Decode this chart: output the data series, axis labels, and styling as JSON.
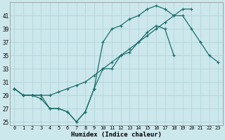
{
  "xlabel": "Humidex (Indice chaleur)",
  "ylabel": "",
  "background_color": "#cde8ed",
  "grid_color": "#b8d8de",
  "line_color": "#1a6e6a",
  "xlim": [
    -0.5,
    23.5
  ],
  "ylim": [
    24.5,
    43
  ],
  "xticks": [
    0,
    1,
    2,
    3,
    4,
    5,
    6,
    7,
    8,
    9,
    10,
    11,
    12,
    13,
    14,
    15,
    16,
    17,
    18,
    19,
    20,
    21,
    22,
    23
  ],
  "yticks": [
    25,
    27,
    29,
    31,
    33,
    35,
    37,
    39,
    41
  ],
  "line1_y": [
    30,
    29,
    29,
    28.5,
    27,
    27,
    26.5,
    25,
    26.5,
    30,
    33,
    33,
    35,
    35.5,
    37,
    38.5,
    39.5,
    39,
    35,
    null,
    null,
    null,
    null,
    null
  ],
  "line2_y": [
    30,
    29,
    29,
    29,
    29,
    29.5,
    30,
    30.5,
    31,
    32,
    33,
    34,
    35,
    36,
    37,
    38,
    39,
    40,
    41,
    42,
    42,
    null,
    null,
    null
  ],
  "line3_y": [
    30,
    29,
    29,
    29,
    27,
    27,
    26.5,
    25,
    26.5,
    30,
    37,
    39,
    39.5,
    40.5,
    41,
    42,
    42.5,
    42,
    41,
    41,
    39,
    37,
    35,
    34
  ]
}
